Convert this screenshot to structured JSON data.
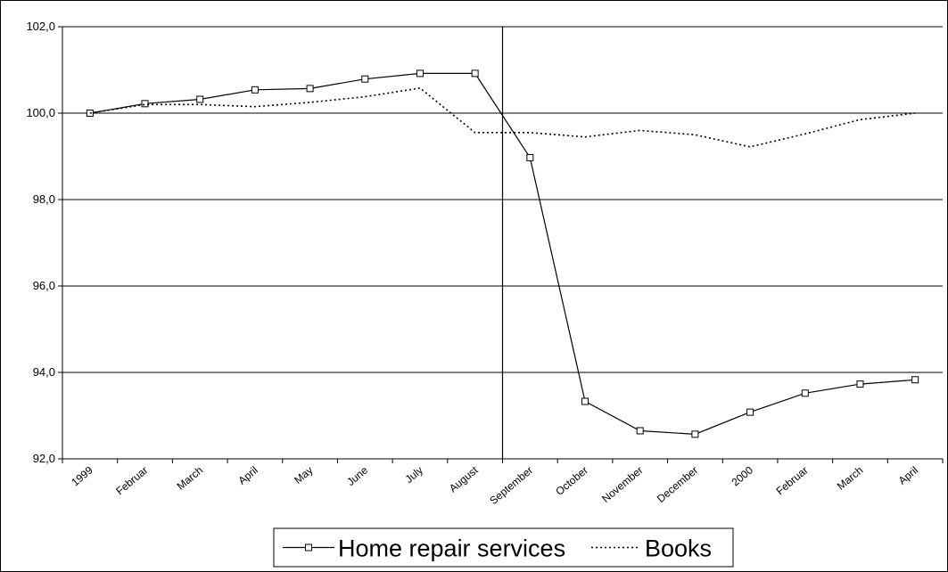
{
  "chart_data": {
    "type": "line",
    "title": "",
    "xlabel": "",
    "ylabel": "",
    "categories": [
      "1999",
      "Februar",
      "March",
      "April",
      "May",
      "June",
      "July",
      "August",
      "September",
      "October",
      "November",
      "December",
      "2000",
      "Februar",
      "March",
      "April"
    ],
    "series": [
      {
        "name": "Home repair services",
        "style": "solid-square-markers",
        "color": "#000000",
        "values": [
          100.0,
          100.22,
          100.32,
          100.54,
          100.57,
          100.79,
          100.92,
          100.92,
          98.97,
          93.33,
          92.65,
          92.57,
          93.08,
          93.52,
          93.73,
          93.83
        ]
      },
      {
        "name": "Books",
        "style": "dotted",
        "color": "#000000",
        "values": [
          100.0,
          100.2,
          100.2,
          100.15,
          100.25,
          100.38,
          100.58,
          99.55,
          99.55,
          99.45,
          99.6,
          99.5,
          99.22,
          99.52,
          99.85,
          100.0
        ]
      }
    ],
    "ylim": [
      92.0,
      102.0
    ],
    "yticks": [
      "92,0",
      "94,0",
      "96,0",
      "98,0",
      "100,0",
      "102,0"
    ],
    "ytick_values": [
      92,
      94,
      96,
      98,
      100,
      102
    ],
    "grid": "horizontal",
    "vertical_marker_after_category": "August",
    "legend": "bottom-center"
  }
}
